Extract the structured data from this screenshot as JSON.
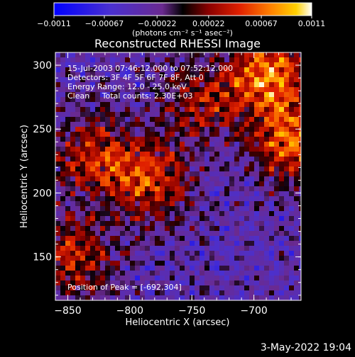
{
  "chart_data": {
    "type": "heatmap",
    "title": "Reconstructed RHESSI Image",
    "xlabel": "Heliocentric X (arcsec)",
    "ylabel": "Heliocentric Y (arcsec)",
    "xlim": [
      -860,
      -662
    ],
    "ylim": [
      116,
      310
    ],
    "x_ticks": [
      "−850",
      "−800",
      "−750",
      "−700"
    ],
    "x_tick_values": [
      -850,
      -800,
      -750,
      -700
    ],
    "y_ticks": [
      "150",
      "200",
      "250",
      "300"
    ],
    "y_tick_values": [
      150,
      200,
      250,
      300
    ],
    "colorbar": {
      "min": -0.0011,
      "max": 0.0011,
      "tick_labels": [
        "−0.0011",
        "−0.00067",
        "−0.00022",
        "0.00022",
        "0.00067",
        "0.0011"
      ],
      "tick_values": [
        -0.0011,
        -0.00067,
        -0.00022,
        0.00022,
        0.00067,
        0.0011
      ],
      "unit_label": "(photons cm⁻² s⁻¹ asec⁻²)",
      "colormap": [
        "#0000ff",
        "#5533cc",
        "#7a3bb0",
        "#1a0008",
        "#7a0000",
        "#d01000",
        "#ff6a00",
        "#ffc000",
        "#ffffff"
      ]
    },
    "annotations": [
      "15-Jul-2003 07:46:12.000 to 07:52:12.000",
      "Detectors: 3F 4F 5F 6F 7F 8F, Att 0",
      "Energy Range: 12.0 - 25.0 keV",
      "Clean     Total counts: 2.30E+03"
    ],
    "peak_label": "Position of Peak = [-692,304]",
    "hot_regions": [
      {
        "x": -690,
        "y": 292,
        "value": 0.0009
      },
      {
        "x": -668,
        "y": 240,
        "value": 0.0008
      },
      {
        "x": -785,
        "y": 210,
        "value": 0.0007
      },
      {
        "x": -830,
        "y": 230,
        "value": 0.0006
      },
      {
        "x": -845,
        "y": 150,
        "value": 0.0006
      },
      {
        "x": -745,
        "y": 270,
        "value": 0.0005
      }
    ]
  },
  "footer_date": "3-May-2022 19:04"
}
